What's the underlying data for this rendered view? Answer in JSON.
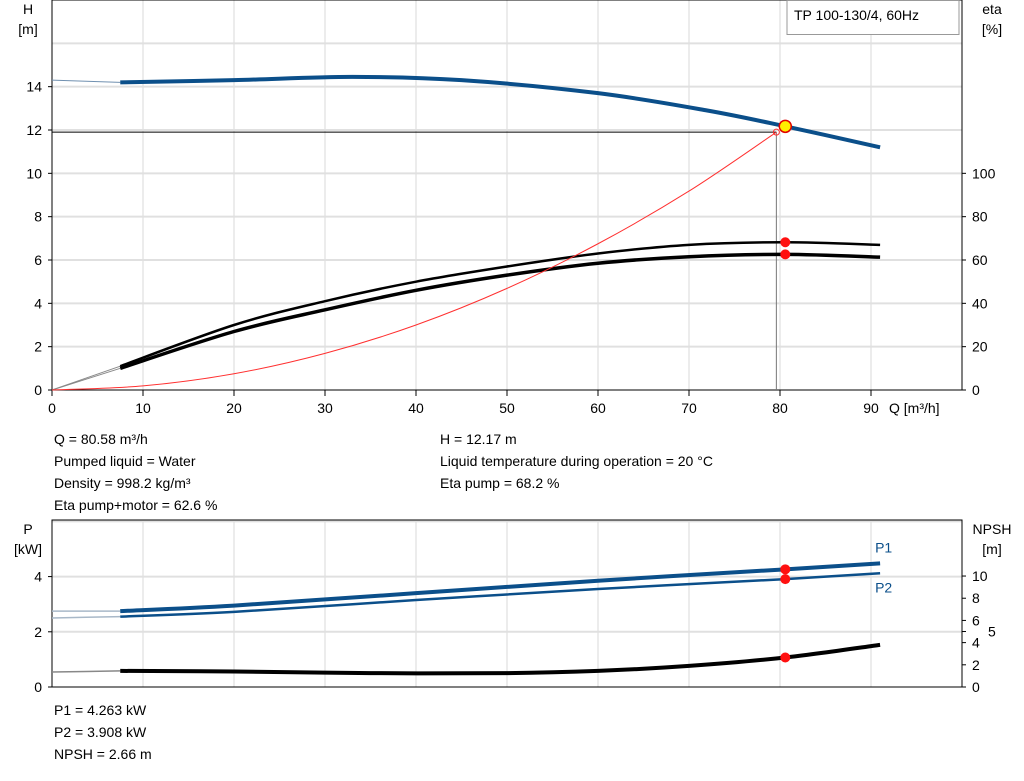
{
  "chart_data": [
    {
      "type": "line",
      "title": "TP 100-130/4, 60Hz",
      "xlabel": "Q [m³/h]",
      "ylabel_left": [
        "H",
        "[m]"
      ],
      "ylabel_right": [
        "eta",
        "[%]"
      ],
      "xlim": [
        0,
        100
      ],
      "ylim_left": [
        0,
        18
      ],
      "ylim_right": [
        0,
        180
      ],
      "x_ticks": [
        0,
        10,
        20,
        30,
        40,
        50,
        60,
        70,
        80,
        90
      ],
      "y_ticks_left": [
        0,
        2,
        4,
        6,
        8,
        10,
        12,
        14
      ],
      "y_ticks_right": [
        0,
        20,
        40,
        60,
        80,
        100
      ],
      "grid": true,
      "series": [
        {
          "key": "H",
          "axis": "left",
          "color": "#0b4f8a",
          "x": [
            0,
            7.5,
            20,
            33,
            45,
            60,
            72,
            80.58,
            91
          ],
          "y": [
            14.3,
            14.2,
            14.3,
            14.45,
            14.3,
            13.7,
            12.9,
            12.17,
            11.2
          ]
        },
        {
          "key": "eta_pump",
          "axis": "right",
          "color": "#000000",
          "x": [
            0,
            7.5,
            20,
            30,
            40,
            50,
            60,
            70,
            80.58,
            91
          ],
          "y": [
            0,
            11,
            30,
            41,
            50,
            57,
            63,
            67,
            68.2,
            67
          ]
        },
        {
          "key": "eta_pump_motor",
          "axis": "right",
          "color": "#000000",
          "x": [
            0,
            7.5,
            20,
            30,
            40,
            50,
            60,
            70,
            80.58,
            91
          ],
          "y": [
            0,
            10,
            27,
            37,
            46,
            53,
            58.5,
            61.5,
            62.6,
            61.3
          ]
        },
        {
          "key": "system",
          "axis": "left",
          "color": "#ff3030",
          "x": [
            0,
            10,
            20,
            30,
            40,
            50,
            60,
            70,
            79.6
          ],
          "y": [
            0,
            0.19,
            0.75,
            1.69,
            3.0,
            4.69,
            6.75,
            9.18,
            11.9
          ]
        }
      ],
      "duty_point": {
        "Q": 80.58,
        "H": 12.17,
        "eta_pump": 68.2,
        "eta_pump_motor": 62.6
      },
      "required_point": {
        "Q": 79.6,
        "H": 11.9
      }
    },
    {
      "type": "line",
      "ylabel_left": [
        "P",
        "[kW]"
      ],
      "ylabel_right": [
        "NPSH",
        "[m]"
      ],
      "xlim": [
        0,
        100
      ],
      "ylim_left": [
        0,
        6.05
      ],
      "ylim_right": [
        0,
        15.05
      ],
      "y_ticks_left": [
        0,
        2,
        4
      ],
      "y_ticks_right": [
        0,
        2,
        4,
        5,
        6,
        8,
        10
      ],
      "grid": true,
      "series": [
        {
          "name": "P1",
          "axis": "left",
          "color": "#0b4f8a",
          "x": [
            0,
            7.5,
            20,
            40,
            60,
            80.58,
            91
          ],
          "y": [
            2.75,
            2.75,
            2.95,
            3.4,
            3.85,
            4.263,
            4.48
          ]
        },
        {
          "name": "P2",
          "axis": "left",
          "color": "#0b4f8a",
          "x": [
            0,
            7.5,
            20,
            40,
            60,
            80.58,
            91
          ],
          "y": [
            2.5,
            2.55,
            2.72,
            3.15,
            3.55,
            3.908,
            4.12
          ]
        },
        {
          "key": "NPSH",
          "axis": "right",
          "color": "#000000",
          "x": [
            0,
            7.5,
            20,
            35,
            50,
            60,
            70,
            80.58,
            91
          ],
          "y": [
            1.35,
            1.45,
            1.4,
            1.25,
            1.25,
            1.45,
            1.9,
            2.66,
            3.8
          ]
        }
      ],
      "duty_point": {
        "Q": 80.58,
        "P1": 4.263,
        "P2": 3.908,
        "NPSH": 2.66
      }
    }
  ],
  "info_top": {
    "left": [
      "Q = 80.58 m³/h",
      "Pumped liquid = Water",
      "Density = 998.2 kg/m³",
      "Eta pump+motor = 62.6 %"
    ],
    "right": [
      "H = 12.17 m",
      "Liquid temperature during operation = 20 °C",
      "Eta pump = 68.2 %"
    ]
  },
  "info_bottom": [
    "P1 = 4.263 kW",
    "P2 = 3.908 kW",
    "NPSH = 2.66 m"
  ]
}
